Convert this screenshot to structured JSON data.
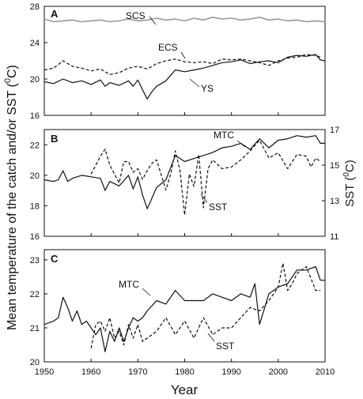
{
  "figure": {
    "ylabel": "Mean temperature of the catch and/or SST (",
    "ylabel_sup": "0",
    "ylabel_end": "C)",
    "xlabel": "Year",
    "x_ticks": [
      "1950",
      "1960",
      "1970",
      "1980",
      "1990",
      "2000",
      "2010"
    ]
  },
  "chart_data": [
    {
      "type": "line",
      "panel": "A",
      "xlim": [
        1950,
        2010
      ],
      "ylim": [
        16,
        28
      ],
      "y_ticks": [
        "16",
        "20",
        "24",
        "28"
      ],
      "series": [
        {
          "name": "SCS",
          "color": "#9a9a9a",
          "dash": "solid",
          "x": [
            1950,
            1952,
            1954,
            1956,
            1958,
            1960,
            1962,
            1964,
            1966,
            1968,
            1970,
            1972,
            1974,
            1976,
            1978,
            1980,
            1982,
            1984,
            1986,
            1988,
            1990,
            1992,
            1994,
            1996,
            1998,
            2000,
            2002,
            2004,
            2006,
            2008,
            2010
          ],
          "y": [
            26.6,
            26.3,
            26.4,
            26.5,
            26.3,
            26.4,
            26.5,
            26.3,
            26.4,
            26.6,
            26.4,
            26.5,
            26.7,
            26.5,
            26.6,
            26.4,
            26.7,
            26.5,
            26.8,
            26.6,
            26.7,
            26.5,
            26.6,
            26.8,
            26.5,
            26.6,
            26.4,
            26.5,
            26.3,
            26.4,
            26.3
          ]
        },
        {
          "name": "ECS",
          "color": "#111111",
          "dash": "dashed",
          "x": [
            1950,
            1952,
            1954,
            1956,
            1958,
            1960,
            1962,
            1964,
            1966,
            1968,
            1970,
            1972,
            1974,
            1976,
            1978,
            1980,
            1982,
            1984,
            1986,
            1988,
            1990,
            1992,
            1994,
            1996,
            1998,
            2000,
            2002,
            2004,
            2006,
            2008,
            2009
          ],
          "y": [
            21.0,
            21.2,
            22.0,
            21.4,
            21.2,
            20.9,
            21.1,
            20.5,
            20.7,
            21.2,
            21.4,
            21.1,
            21.7,
            22.0,
            22.2,
            21.9,
            21.8,
            21.9,
            21.7,
            22.2,
            22.1,
            22.2,
            22.0,
            21.8,
            21.5,
            22.0,
            22.3,
            22.4,
            22.7,
            22.6,
            22.4
          ]
        },
        {
          "name": "YS",
          "color": "#111111",
          "dash": "solid",
          "x": [
            1950,
            1952,
            1954,
            1956,
            1958,
            1960,
            1962,
            1963,
            1964,
            1966,
            1968,
            1969,
            1970,
            1971,
            1972,
            1973,
            1974,
            1976,
            1978,
            1980,
            1982,
            1984,
            1986,
            1988,
            1990,
            1992,
            1994,
            1996,
            1998,
            2000,
            2002,
            2004,
            2006,
            2008,
            2009,
            2010
          ],
          "y": [
            19.7,
            19.5,
            20.0,
            19.6,
            19.8,
            19.4,
            19.9,
            19.2,
            19.6,
            19.3,
            19.8,
            19.2,
            19.9,
            18.8,
            17.8,
            18.6,
            19.2,
            19.8,
            21.0,
            20.8,
            21.0,
            21.2,
            21.5,
            21.8,
            21.9,
            22.1,
            21.7,
            21.9,
            22.0,
            21.8,
            22.4,
            22.6,
            22.5,
            22.7,
            22.1,
            22.0
          ]
        }
      ]
    },
    {
      "type": "line",
      "panel": "B",
      "xlim": [
        1950,
        2010
      ],
      "ylim": [
        16,
        23
      ],
      "y_ticks": [
        "16",
        "18",
        "20",
        "22"
      ],
      "y2lim": [
        11,
        17
      ],
      "y2_ticks": [
        "11",
        "13",
        "15",
        "17"
      ],
      "y2label": "SST (",
      "y2label_sup": "0",
      "y2label_end": "C)",
      "series": [
        {
          "name": "MTC",
          "color": "#111111",
          "dash": "solid",
          "axis": "left",
          "x": [
            1950,
            1952,
            1953,
            1954,
            1955,
            1956,
            1958,
            1960,
            1962,
            1963,
            1964,
            1966,
            1968,
            1969,
            1970,
            1971,
            1972,
            1973,
            1974,
            1976,
            1978,
            1980,
            1982,
            1984,
            1986,
            1988,
            1990,
            1992,
            1994,
            1996,
            1998,
            2000,
            2002,
            2004,
            2006,
            2008,
            2009,
            2010
          ],
          "y": [
            19.7,
            19.6,
            19.7,
            20.3,
            19.6,
            19.8,
            20.0,
            19.9,
            19.8,
            19.0,
            19.6,
            19.3,
            20.0,
            19.1,
            19.9,
            18.7,
            17.8,
            18.5,
            19.2,
            19.7,
            21.3,
            20.9,
            21.1,
            21.3,
            21.5,
            21.8,
            21.9,
            22.1,
            21.7,
            22.4,
            21.8,
            22.3,
            22.4,
            22.6,
            22.5,
            22.6,
            22.1,
            22.1
          ]
        },
        {
          "name": "SST",
          "color": "#111111",
          "dash": "dashed",
          "axis": "right",
          "x": [
            1960,
            1962,
            1963,
            1964,
            1966,
            1967,
            1968,
            1969,
            1970,
            1971,
            1972,
            1973,
            1974,
            1976,
            1977,
            1978,
            1979,
            1980,
            1981,
            1982,
            1983,
            1984,
            1985,
            1986,
            1988,
            1990,
            1992,
            1994,
            1996,
            1998,
            2000,
            2002,
            2004,
            2006,
            2007,
            2008,
            2009
          ],
          "y": [
            14.5,
            15.5,
            15.9,
            15.0,
            14.0,
            15.2,
            15.2,
            14.6,
            14.8,
            14.2,
            14.7,
            15.1,
            15.3,
            13.6,
            14.5,
            15.8,
            14.7,
            12.2,
            14.5,
            13.8,
            15.6,
            12.6,
            14.8,
            15.3,
            14.8,
            14.9,
            15.3,
            15.8,
            16.4,
            15.4,
            15.7,
            14.8,
            15.6,
            15.5,
            14.9,
            15.4,
            15.2
          ]
        }
      ]
    },
    {
      "type": "line",
      "panel": "C",
      "xlim": [
        1950,
        2010
      ],
      "ylim": [
        20,
        23.3
      ],
      "y_ticks": [
        "20",
        "21",
        "22",
        "23"
      ],
      "series": [
        {
          "name": "MTC",
          "color": "#111111",
          "dash": "solid",
          "x": [
            1950,
            1952,
            1953,
            1954,
            1955,
            1956,
            1957,
            1958,
            1959,
            1960,
            1961,
            1962,
            1963,
            1964,
            1965,
            1966,
            1967,
            1968,
            1969,
            1970,
            1971,
            1972,
            1974,
            1976,
            1978,
            1980,
            1982,
            1984,
            1986,
            1988,
            1990,
            1992,
            1994,
            1995,
            1996,
            1998,
            2000,
            2002,
            2004,
            2006,
            2008,
            2009,
            2010
          ],
          "y": [
            21.1,
            21.2,
            21.3,
            21.9,
            21.6,
            21.2,
            21.5,
            21.1,
            21.2,
            21.0,
            20.8,
            21.0,
            20.3,
            20.9,
            20.6,
            21.0,
            20.6,
            21.0,
            21.3,
            21.2,
            21.3,
            21.5,
            21.8,
            21.7,
            22.1,
            21.8,
            21.8,
            21.8,
            22.0,
            21.9,
            21.8,
            22.0,
            21.9,
            22.3,
            21.1,
            22.0,
            22.2,
            22.3,
            22.7,
            22.7,
            22.8,
            22.4,
            22.4
          ]
        },
        {
          "name": "SST",
          "color": "#111111",
          "dash": "dashed",
          "x": [
            1960,
            1961,
            1962,
            1963,
            1964,
            1965,
            1966,
            1967,
            1968,
            1969,
            1970,
            1971,
            1972,
            1974,
            1976,
            1978,
            1980,
            1982,
            1984,
            1986,
            1988,
            1990,
            1992,
            1994,
            1996,
            1998,
            2000,
            2001,
            2002,
            2003,
            2004,
            2006,
            2008,
            2009
          ],
          "y": [
            20.4,
            21.1,
            21.2,
            20.9,
            21.3,
            20.7,
            20.9,
            20.5,
            21.1,
            20.7,
            21.1,
            20.6,
            20.7,
            20.9,
            21.3,
            20.8,
            21.2,
            20.7,
            21.3,
            20.8,
            21.0,
            21.0,
            21.3,
            21.6,
            21.5,
            21.8,
            22.2,
            22.9,
            22.1,
            22.3,
            22.6,
            22.8,
            22.1,
            22.1
          ]
        }
      ]
    }
  ]
}
